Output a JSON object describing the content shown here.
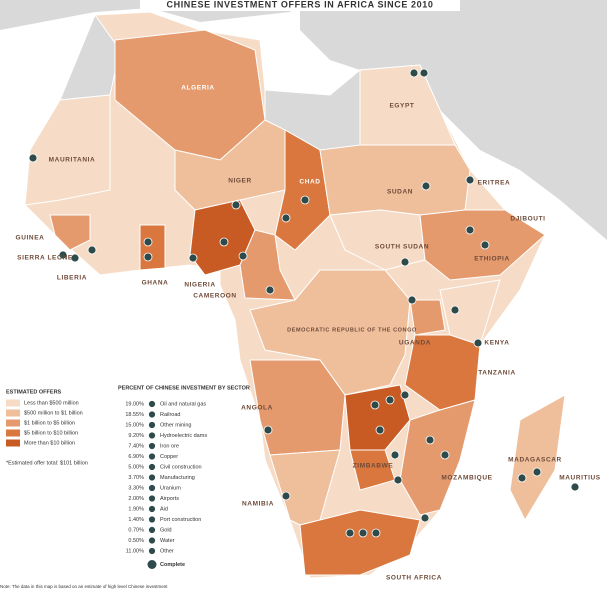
{
  "title": "CHINESE INVESTMENT OFFERS IN AFRICA SINCE 2010",
  "countries": [
    "ALGERIA",
    "EGYPT",
    "MAURITANIA",
    "NIGER",
    "CHAD",
    "SUDAN",
    "ERITREA",
    "DJIBOUTI",
    "GUINEA",
    "SIERRA LEONE",
    "LIBERIA",
    "GHANA",
    "NIGERIA",
    "CAMEROON",
    "SOUTH SUDAN",
    "ETHIOPIA",
    "DEMOCRATIC REPUBLIC OF THE CONGO",
    "UGANDA",
    "KENYA",
    "TANZANIA",
    "ANGOLA",
    "ZIMBABWE",
    "MOZAMBIQUE",
    "MADAGASCAR",
    "MAURITIUS",
    "NAMIBIA",
    "SOUTH AFRICA"
  ],
  "offers_legend": {
    "title": "ESTIMATED OFFERS",
    "items": [
      "Less than $500 million",
      "$500 million to $1 billion",
      "$1 billion to $5 billion",
      "$5 billion to $10 billion",
      "More than $10 billion"
    ],
    "footnote": "*Estimated offer total: $101 billion"
  },
  "sector_legend": {
    "title": "PERCENT OF CHINESE INVESTMENT BY SECTOR",
    "items": [
      {
        "percent": "19.00%",
        "sector": "Oil and natural gas"
      },
      {
        "percent": "18.55%",
        "sector": "Railroad"
      },
      {
        "percent": "15.00%",
        "sector": "Other mining"
      },
      {
        "percent": "9.20%",
        "sector": "Hydroelectric dams"
      },
      {
        "percent": "7.40%",
        "sector": "Iron ore"
      },
      {
        "percent": "6.90%",
        "sector": "Copper"
      },
      {
        "percent": "5.00%",
        "sector": "Civil construction"
      },
      {
        "percent": "3.70%",
        "sector": "Manufacturing"
      },
      {
        "percent": "3.30%",
        "sector": "Uranium"
      },
      {
        "percent": "2.00%",
        "sector": "Airports"
      },
      {
        "percent": "1.90%",
        "sector": "Aid"
      },
      {
        "percent": "1.40%",
        "sector": "Port construction"
      },
      {
        "percent": "0.70%",
        "sector": "Gold"
      },
      {
        "percent": "0.50%",
        "sector": "Water"
      },
      {
        "percent": "11.00%",
        "sector": "Other"
      }
    ],
    "complete": "Complete"
  },
  "note": "Note: The data in this map is based on an estimate of high level Chinese investment"
}
